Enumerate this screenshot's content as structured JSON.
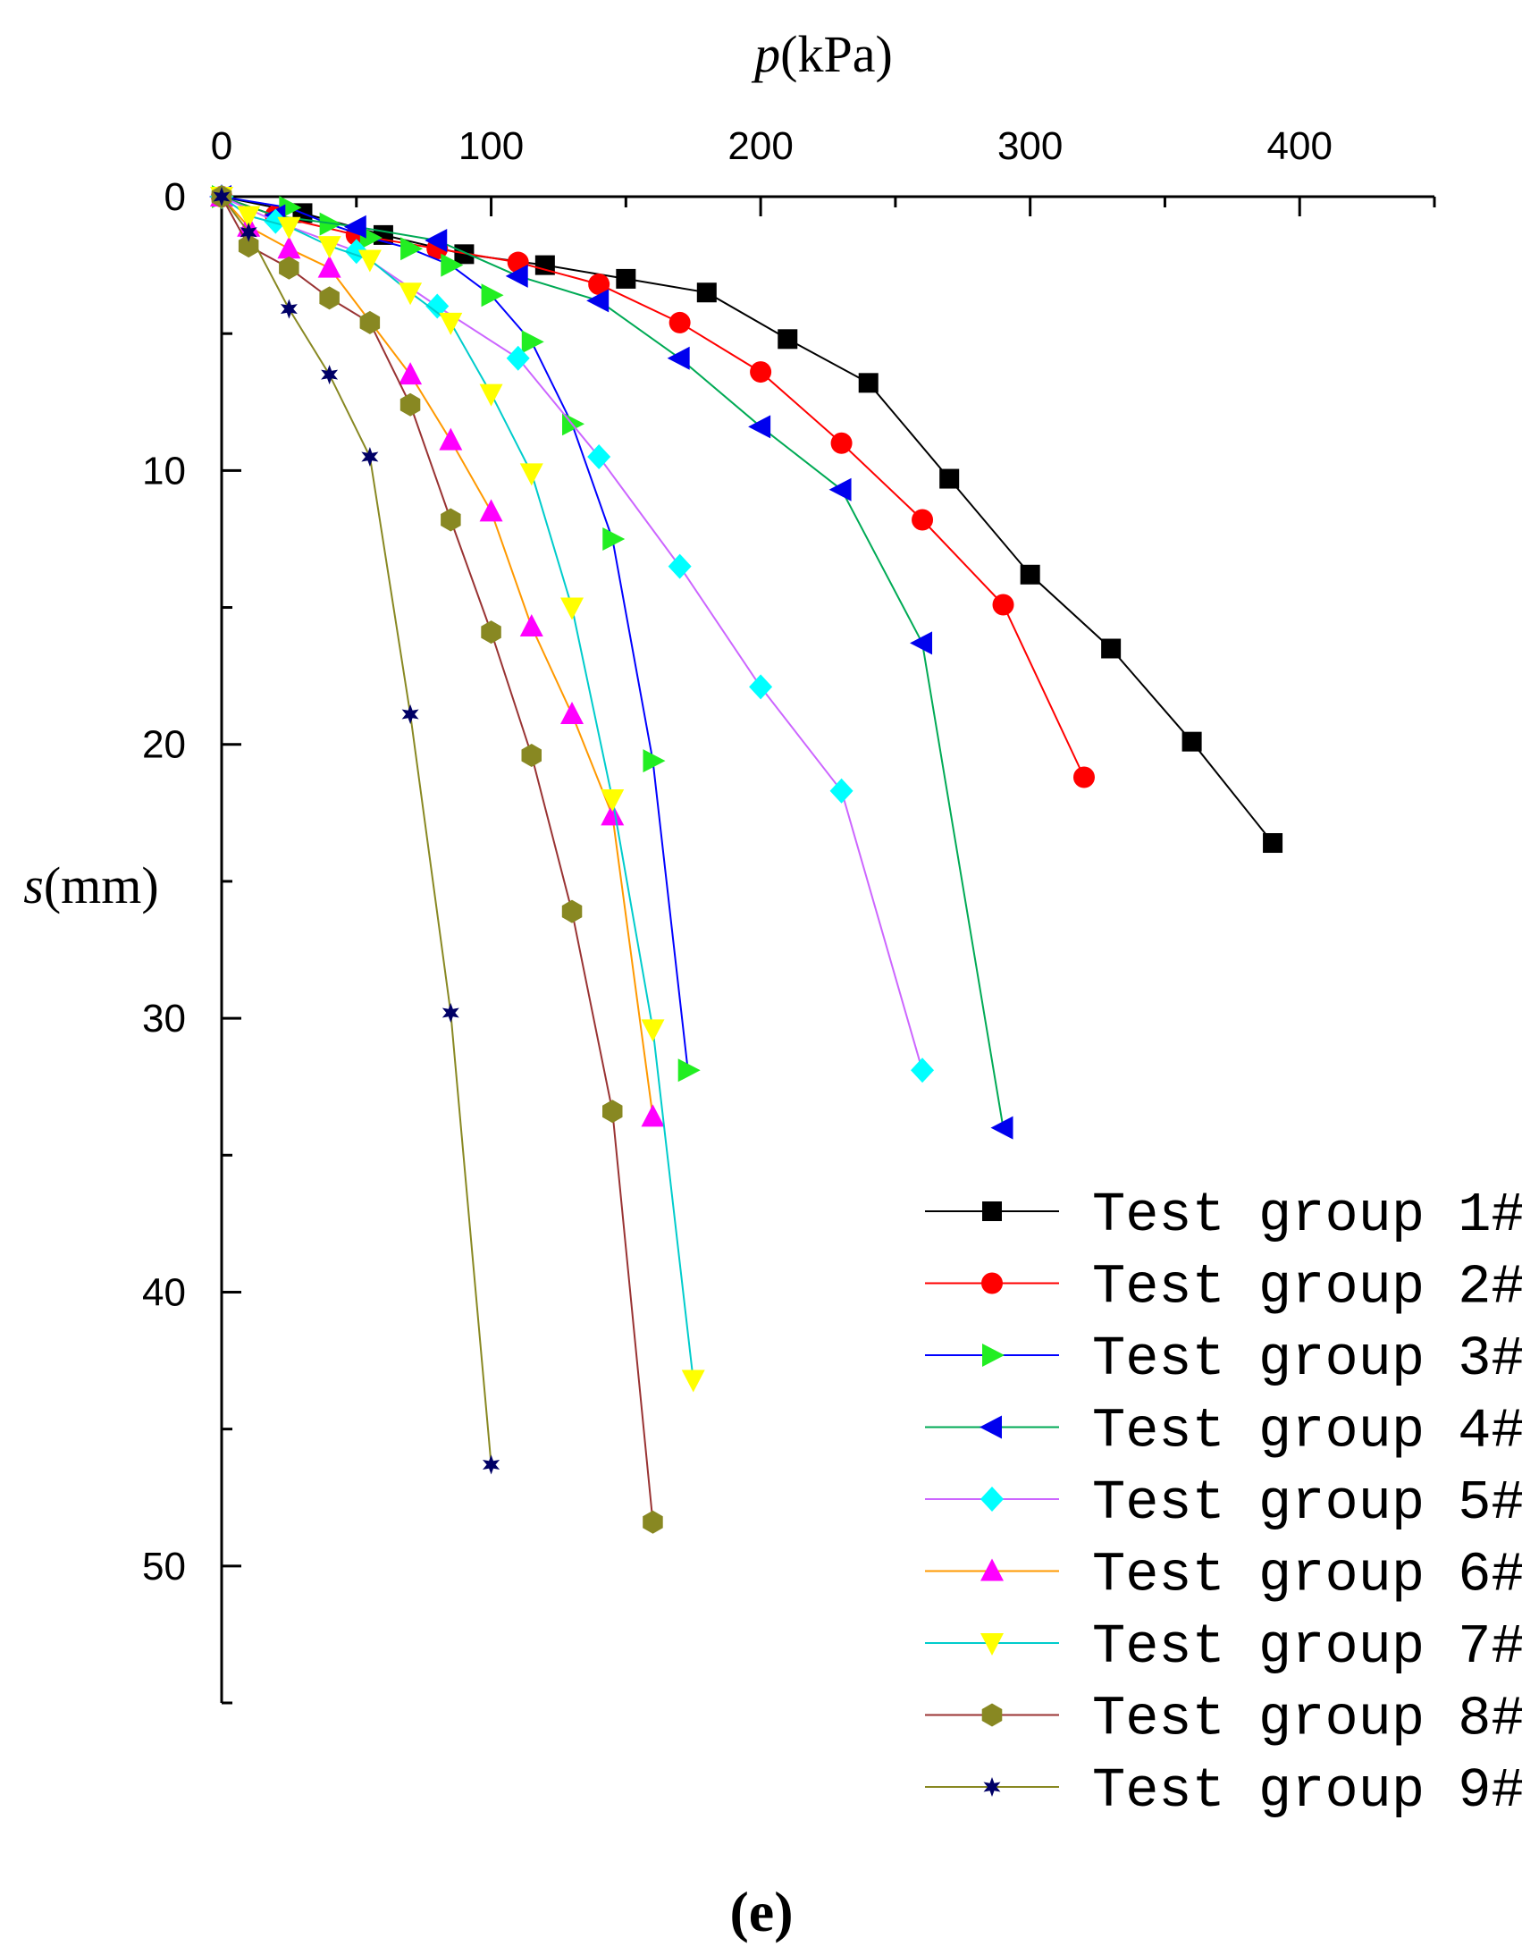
{
  "panel_label": "(e)",
  "chart_data": {
    "type": "line",
    "title": "",
    "xlabel": "p(kPa)",
    "xlabel_var": "p",
    "xlabel_unit": "(kPa)",
    "ylabel": "s(mm)",
    "ylabel_var": "s",
    "ylabel_unit": "(mm)",
    "x_axis_position": "top",
    "y_axis_inverted": true,
    "xlim": [
      0,
      450
    ],
    "ylim": [
      0,
      55
    ],
    "xticks": [
      0,
      100,
      200,
      300,
      400
    ],
    "xtick_labels": [
      "0",
      "100",
      "200",
      "300",
      "400"
    ],
    "yticks": [
      0,
      10,
      20,
      30,
      40,
      50
    ],
    "ytick_labels": [
      "0",
      "10",
      "20",
      "30",
      "40",
      "50"
    ],
    "grid": false,
    "legend_position": "bottom-right",
    "series": [
      {
        "name": "Test group 1#",
        "color": "#000000",
        "marker": "square",
        "x": [
          0,
          30,
          60,
          90,
          120,
          150,
          180,
          210,
          240,
          270,
          300,
          330,
          360,
          390
        ],
        "y": [
          0,
          0.6,
          1.4,
          2.1,
          2.5,
          3.0,
          3.5,
          5.2,
          6.8,
          10.3,
          13.8,
          16.5,
          19.9,
          23.6
        ]
      },
      {
        "name": "Test group 2#",
        "color": "#ff0000",
        "marker": "circle",
        "x": [
          0,
          20,
          50,
          80,
          110,
          140,
          170,
          200,
          230,
          260,
          290,
          320
        ],
        "y": [
          0,
          0.7,
          1.4,
          1.9,
          2.4,
          3.2,
          4.6,
          6.4,
          9.0,
          11.8,
          14.9,
          21.2
        ]
      },
      {
        "name": "Test group 3#",
        "color": "#0000ff",
        "marker": "triangle-right",
        "marker_color": "#22ee22",
        "x": [
          0,
          25,
          40,
          55,
          70,
          85,
          100,
          115,
          130,
          145,
          160,
          173
        ],
        "y": [
          0,
          0.4,
          1.0,
          1.5,
          1.9,
          2.5,
          3.6,
          5.3,
          8.3,
          12.5,
          20.6,
          31.9
        ]
      },
      {
        "name": "Test group 4#",
        "color": "#00aa55",
        "marker": "triangle-left",
        "marker_color": "#0000ee",
        "x": [
          0,
          20,
          50,
          80,
          110,
          140,
          170,
          200,
          230,
          260,
          290
        ],
        "y": [
          0,
          0.7,
          1.1,
          1.6,
          2.9,
          3.8,
          5.9,
          8.4,
          10.7,
          16.3,
          34.0
        ]
      },
      {
        "name": "Test group 5#",
        "color": "#cc66ff",
        "marker": "diamond",
        "marker_color": "#00ffff",
        "x": [
          0,
          20,
          50,
          80,
          110,
          140,
          170,
          200,
          230,
          260
        ],
        "y": [
          0,
          0.9,
          2.0,
          4.0,
          5.9,
          9.5,
          13.5,
          17.9,
          21.7,
          31.9
        ]
      },
      {
        "name": "Test group 6#",
        "color": "#ff9900",
        "marker": "triangle-up",
        "marker_color": "#ff00ff",
        "x": [
          0,
          10,
          25,
          40,
          70,
          85,
          100,
          115,
          130,
          145,
          160
        ],
        "y": [
          0,
          1.1,
          1.9,
          2.6,
          6.5,
          8.9,
          11.5,
          15.7,
          18.9,
          22.6,
          33.6
        ]
      },
      {
        "name": "Test group 7#",
        "color": "#00cccc",
        "marker": "triangle-down",
        "marker_color": "#ffff00",
        "x": [
          0,
          10,
          25,
          40,
          55,
          70,
          85,
          100,
          115,
          130,
          145,
          160,
          175
        ],
        "y": [
          0,
          0.7,
          1.1,
          1.8,
          2.3,
          3.5,
          4.6,
          7.2,
          10.1,
          15.0,
          22.0,
          30.4,
          43.2
        ]
      },
      {
        "name": "Test group 8#",
        "color": "#993333",
        "marker": "hexagon",
        "marker_color": "#888822",
        "x": [
          0,
          10,
          25,
          40,
          55,
          70,
          85,
          100,
          115,
          130,
          145,
          160
        ],
        "y": [
          0,
          1.8,
          2.6,
          3.7,
          4.6,
          7.6,
          11.8,
          15.9,
          20.4,
          26.1,
          33.4,
          48.4
        ]
      },
      {
        "name": "Test group 9#",
        "color": "#888822",
        "marker": "star",
        "marker_color": "#000066",
        "x": [
          0,
          10,
          25,
          40,
          55,
          70,
          85,
          100
        ],
        "y": [
          0,
          1.3,
          4.1,
          6.5,
          9.5,
          18.9,
          29.8,
          46.3
        ]
      }
    ]
  }
}
